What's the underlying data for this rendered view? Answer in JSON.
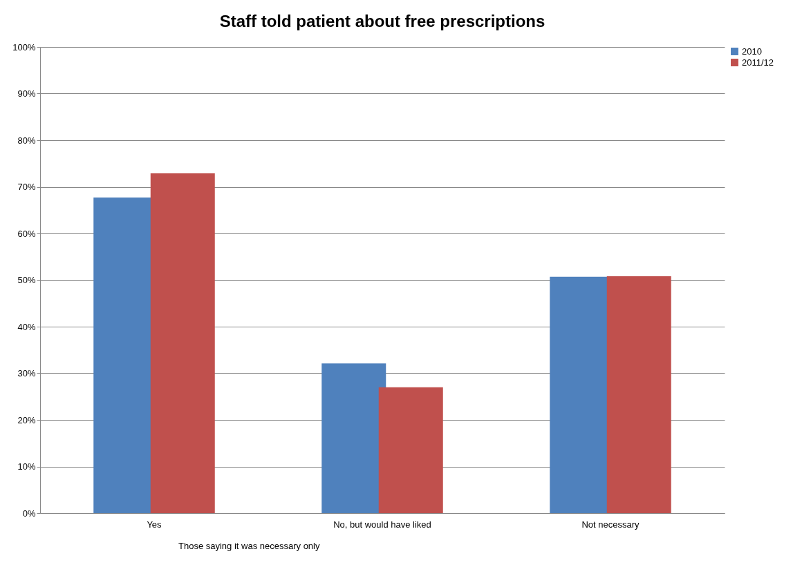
{
  "chart_data": {
    "type": "bar",
    "title": "Staff told patient about free prescriptions",
    "categories": [
      "Yes",
      "No, but would have liked",
      "Not necessary"
    ],
    "series": [
      {
        "name": "2010",
        "color": "#4f81bd",
        "values": [
          67.7,
          32.1,
          50.7
        ]
      },
      {
        "name": "2011/12",
        "color": "#c0504d",
        "values": [
          72.9,
          27.0,
          50.8
        ]
      }
    ],
    "ylim": [
      0,
      100
    ],
    "yticks": [
      {
        "value": 0,
        "label": "0%"
      },
      {
        "value": 10,
        "label": "10%"
      },
      {
        "value": 20,
        "label": "20%"
      },
      {
        "value": 30,
        "label": "30%"
      },
      {
        "value": 40,
        "label": "40%"
      },
      {
        "value": 50,
        "label": "50%"
      },
      {
        "value": 60,
        "label": "60%"
      },
      {
        "value": 70,
        "label": "70%"
      },
      {
        "value": 80,
        "label": "80%"
      },
      {
        "value": 90,
        "label": "90%"
      },
      {
        "value": 100,
        "label": "100%"
      }
    ],
    "grid": "y",
    "legend": "right",
    "annotations": [
      "Those saying it was necessary only"
    ]
  }
}
